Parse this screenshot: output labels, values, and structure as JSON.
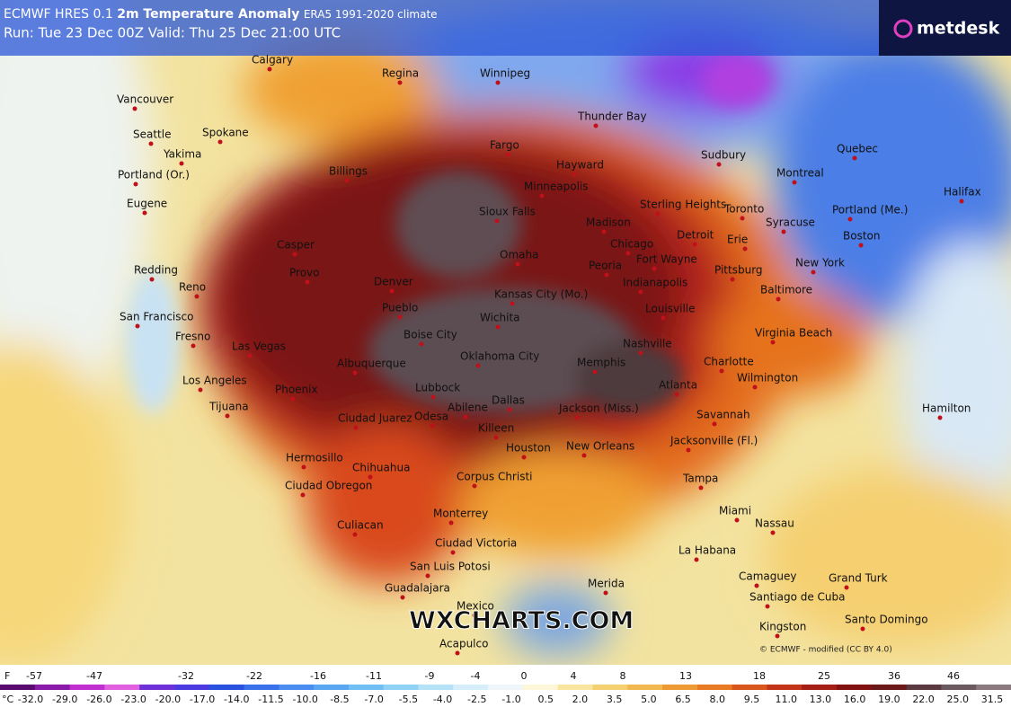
{
  "header": {
    "model": "ECMWF HRES 0.1",
    "title": "2m Temperature Anomaly",
    "climate": "ERA5 1991-2020 climate",
    "run": "Run: Tue 23 Dec 00Z Valid: Thu 25 Dec 21:00 UTC"
  },
  "logo": "metdesk",
  "watermark": "WXCHARTS.COM",
  "credit": "© ECMWF - modified (CC BY 4.0)",
  "cities": [
    "Calgary",
    "Regina",
    "Winnipeg",
    "Vancouver",
    "Seattle",
    "Spokane",
    "Yakima",
    "Portland (Or.)",
    "Billings",
    "Fargo",
    "Thunder Bay",
    "Hayward",
    "Sudbury",
    "Quebec",
    "Montreal",
    "Halifax",
    "Eugene",
    "Minneapolis",
    "Sioux Falls",
    "Madison",
    "Sterling Heights",
    "Toronto",
    "Syracuse",
    "Portland (Me.)",
    "Redding",
    "Casper",
    "Provo",
    "Reno",
    "Denver",
    "Pueblo",
    "Omaha",
    "Chicago",
    "Detroit",
    "Erie",
    "Boston",
    "New York",
    "Peoria",
    "Fort Wayne",
    "Pittsburg",
    "Baltimore",
    "Indianapolis",
    "Kansas City (Mo.)",
    "Wichita",
    "Louisville",
    "San Francisco",
    "Fresno",
    "Las Vegas",
    "Boise City",
    "Nashville",
    "Virginia Beach",
    "Albuquerque",
    "Oklahoma City",
    "Memphis",
    "Charlotte",
    "Los Angeles",
    "Phoenix",
    "Lubbock",
    "Atlanta",
    "Wilmington",
    "Dallas",
    "Tijuana",
    "Ciudad Juarez",
    "Odesa",
    "Abilene",
    "Killeen",
    "Jackson (Miss.)",
    "Savannah",
    "Hamilton",
    "Houston",
    "New Orleans",
    "Jacksonville (Fl.)",
    "Hermosillo",
    "Chihuahua",
    "Corpus Christi",
    "Ciudad Obregon",
    "Tampa",
    "Culiacan",
    "Monterrey",
    "Miami",
    "Nassau",
    "Ciudad Victoria",
    "La Habana",
    "San Luis Potosi",
    "Camaguey",
    "Grand Turk",
    "Merida",
    "Guadalajara",
    "Santiago de Cuba",
    "Mexico",
    "Kingston",
    "Santo Domingo",
    "Acapulco"
  ],
  "legend": {
    "fahrenheit_unit": "F",
    "fahrenheit": [
      "-57",
      "-47",
      "-32",
      "-22",
      "-16",
      "-11",
      "-9",
      "-4",
      "0",
      "4",
      "8",
      "13",
      "18",
      "25",
      "36",
      "46"
    ],
    "celsius_unit": "°C",
    "celsius": [
      "-32.0",
      "-29.0",
      "-26.0",
      "-23.0",
      "-20.0",
      "-17.0",
      "-14.0",
      "-11.5",
      "-10.0",
      "-8.5",
      "-7.0",
      "-5.5",
      "-4.0",
      "-2.5",
      "-1.0",
      "0.5",
      "2.0",
      "3.5",
      "5.0",
      "6.5",
      "8.0",
      "9.5",
      "11.0",
      "13.0",
      "16.0",
      "19.0",
      "22.0",
      "25.0",
      "31.5"
    ]
  }
}
